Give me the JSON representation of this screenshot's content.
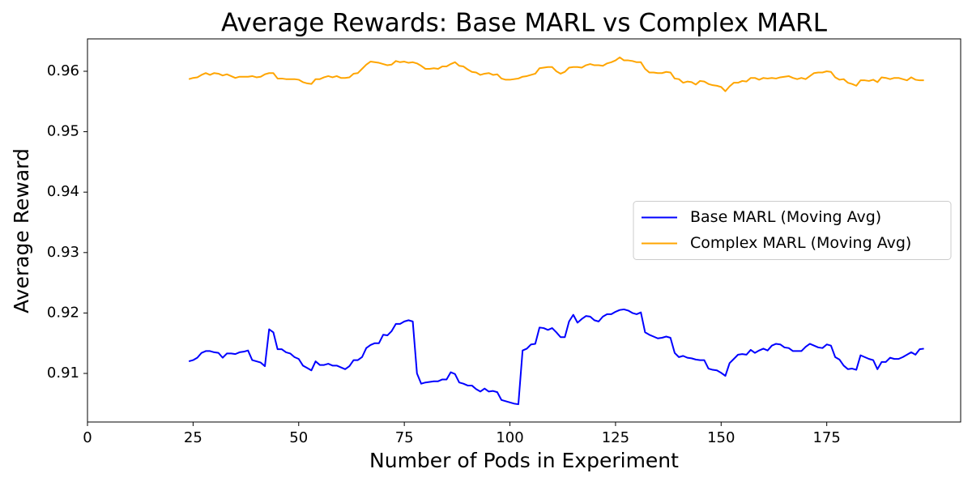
{
  "chart_data": {
    "type": "line",
    "title": "Average Rewards: Base MARL vs Complex MARL",
    "xlabel": "Number of Pods in Experiment",
    "ylabel": "Average Reward",
    "x": [
      24,
      25,
      26,
      27,
      28,
      29,
      30,
      31,
      32,
      33,
      34,
      35,
      36,
      37,
      38,
      39,
      40,
      41,
      42,
      43,
      44,
      45,
      46,
      47,
      48,
      49,
      50,
      51,
      52,
      53,
      54,
      55,
      56,
      57,
      58,
      59,
      60,
      61,
      62,
      63,
      64,
      65,
      66,
      67,
      68,
      69,
      70,
      71,
      72,
      73,
      74,
      75,
      76,
      77,
      78,
      79,
      80,
      81,
      82,
      83,
      84,
      85,
      86,
      87,
      88,
      89,
      90,
      91,
      92,
      93,
      94,
      95,
      96,
      97,
      98,
      99,
      100,
      101,
      102,
      103,
      104,
      105,
      106,
      107,
      108,
      109,
      110,
      111,
      112,
      113,
      114,
      115,
      116,
      117,
      118,
      119,
      120,
      121,
      122,
      123,
      124,
      125,
      126,
      127,
      128,
      129,
      130,
      131,
      132,
      133,
      134,
      135,
      136,
      137,
      138,
      139,
      140,
      141,
      142,
      143,
      144,
      145,
      146,
      147,
      148,
      149,
      150,
      151,
      152,
      153,
      154,
      155,
      156,
      157,
      158,
      159,
      160,
      161,
      162,
      163,
      164,
      165,
      166,
      167,
      168,
      169,
      170,
      171,
      172,
      173,
      174,
      175,
      176,
      177,
      178,
      179,
      180,
      181,
      182,
      183,
      184,
      185,
      186,
      187,
      188,
      189,
      190,
      191,
      192,
      193,
      194,
      195,
      196,
      197,
      198
    ],
    "series": [
      {
        "name": "Base MARL (Moving Avg)",
        "color": "#0000ff",
        "values": [
          0.912,
          0.9122,
          0.9126,
          0.9134,
          0.9137,
          0.9137,
          0.9135,
          0.9134,
          0.9126,
          0.9133,
          0.9133,
          0.9132,
          0.9135,
          0.9136,
          0.9138,
          0.9122,
          0.912,
          0.9118,
          0.9112,
          0.9173,
          0.9168,
          0.914,
          0.914,
          0.9135,
          0.9133,
          0.9127,
          0.9124,
          0.9113,
          0.9109,
          0.9105,
          0.912,
          0.9114,
          0.9114,
          0.9116,
          0.9113,
          0.9113,
          0.911,
          0.9107,
          0.9112,
          0.9122,
          0.9122,
          0.9127,
          0.9142,
          0.9147,
          0.915,
          0.915,
          0.9164,
          0.9163,
          0.917,
          0.9182,
          0.9182,
          0.9186,
          0.9188,
          0.9186,
          0.91,
          0.9083,
          0.9085,
          0.9086,
          0.9087,
          0.9087,
          0.909,
          0.909,
          0.9102,
          0.9099,
          0.9085,
          0.9083,
          0.908,
          0.908,
          0.9074,
          0.907,
          0.9075,
          0.907,
          0.9071,
          0.9069,
          0.9056,
          0.9054,
          0.9052,
          0.905,
          0.9049,
          0.9138,
          0.9141,
          0.9148,
          0.9149,
          0.9176,
          0.9175,
          0.9172,
          0.9175,
          0.9168,
          0.916,
          0.916,
          0.9186,
          0.9197,
          0.9184,
          0.919,
          0.9195,
          0.9194,
          0.9188,
          0.9186,
          0.9194,
          0.9198,
          0.9198,
          0.9202,
          0.9205,
          0.9206,
          0.9204,
          0.92,
          0.9198,
          0.9201,
          0.9168,
          0.9164,
          0.9161,
          0.9158,
          0.9159,
          0.9161,
          0.9159,
          0.9134,
          0.9127,
          0.9129,
          0.9126,
          0.9125,
          0.9123,
          0.9122,
          0.9122,
          0.9108,
          0.9106,
          0.9105,
          0.9101,
          0.9096,
          0.9117,
          0.9124,
          0.9131,
          0.9132,
          0.9131,
          0.9139,
          0.9134,
          0.9138,
          0.9141,
          0.9138,
          0.9146,
          0.9149,
          0.9148,
          0.9143,
          0.9142,
          0.9137,
          0.9137,
          0.9137,
          0.9144,
          0.9149,
          0.9146,
          0.9143,
          0.9142,
          0.9148,
          0.9146,
          0.9127,
          0.9123,
          0.9113,
          0.9107,
          0.9108,
          0.9106,
          0.913,
          0.9127,
          0.9124,
          0.9122,
          0.9107,
          0.9119,
          0.9119,
          0.9126,
          0.9124,
          0.9124,
          0.9127,
          0.9131,
          0.9135,
          0.9131,
          0.914,
          0.9141
        ]
      },
      {
        "name": "Complex MARL (Moving Avg)",
        "color": "#ffa500",
        "values": [
          0.9587,
          0.9589,
          0.959,
          0.9594,
          0.9597,
          0.9594,
          0.9597,
          0.9596,
          0.9593,
          0.9595,
          0.9592,
          0.9589,
          0.9591,
          0.9591,
          0.9591,
          0.9592,
          0.959,
          0.9591,
          0.9595,
          0.9597,
          0.9597,
          0.9588,
          0.9588,
          0.9587,
          0.9587,
          0.9587,
          0.9586,
          0.9582,
          0.958,
          0.9579,
          0.9587,
          0.9587,
          0.959,
          0.9592,
          0.959,
          0.9592,
          0.9589,
          0.9589,
          0.959,
          0.9596,
          0.9597,
          0.9604,
          0.9611,
          0.9616,
          0.9615,
          0.9614,
          0.9612,
          0.961,
          0.9611,
          0.9617,
          0.9615,
          0.9616,
          0.9614,
          0.9615,
          0.9613,
          0.9609,
          0.9604,
          0.9604,
          0.9605,
          0.9604,
          0.9608,
          0.9608,
          0.9612,
          0.9615,
          0.9609,
          0.9608,
          0.9603,
          0.9599,
          0.9598,
          0.9594,
          0.9596,
          0.9597,
          0.9594,
          0.9595,
          0.9588,
          0.9586,
          0.9586,
          0.9587,
          0.9588,
          0.9591,
          0.9592,
          0.9594,
          0.9596,
          0.9605,
          0.9606,
          0.9607,
          0.9607,
          0.96,
          0.9596,
          0.9599,
          0.9606,
          0.9607,
          0.9607,
          0.9606,
          0.961,
          0.9612,
          0.961,
          0.961,
          0.9609,
          0.9613,
          0.9615,
          0.9618,
          0.9623,
          0.9618,
          0.9618,
          0.9617,
          0.9615,
          0.9615,
          0.9604,
          0.9598,
          0.9598,
          0.9597,
          0.9597,
          0.9599,
          0.9598,
          0.9588,
          0.9587,
          0.9581,
          0.9583,
          0.9582,
          0.9578,
          0.9584,
          0.9583,
          0.9579,
          0.9577,
          0.9576,
          0.9574,
          0.9567,
          0.9575,
          0.9581,
          0.9581,
          0.9584,
          0.9583,
          0.9589,
          0.9589,
          0.9586,
          0.9589,
          0.9588,
          0.9589,
          0.9588,
          0.959,
          0.9591,
          0.9592,
          0.9589,
          0.9587,
          0.9589,
          0.9587,
          0.9592,
          0.9597,
          0.9598,
          0.9598,
          0.96,
          0.9599,
          0.959,
          0.9586,
          0.9587,
          0.9581,
          0.9579,
          0.9576,
          0.9585,
          0.9585,
          0.9584,
          0.9586,
          0.9582,
          0.959,
          0.9589,
          0.9587,
          0.9589,
          0.9589,
          0.9587,
          0.9585,
          0.959,
          0.9586,
          0.9585,
          0.9585
        ]
      }
    ],
    "xlim": [
      0,
      206.7
    ],
    "xticks": [
      0,
      25,
      50,
      75,
      100,
      125,
      150,
      175
    ],
    "ylim": [
      0.90196,
      0.96536
    ],
    "yticks": [
      0.91,
      0.92,
      0.93,
      0.94,
      0.95,
      0.96
    ],
    "grid": false,
    "legend": "center right"
  }
}
